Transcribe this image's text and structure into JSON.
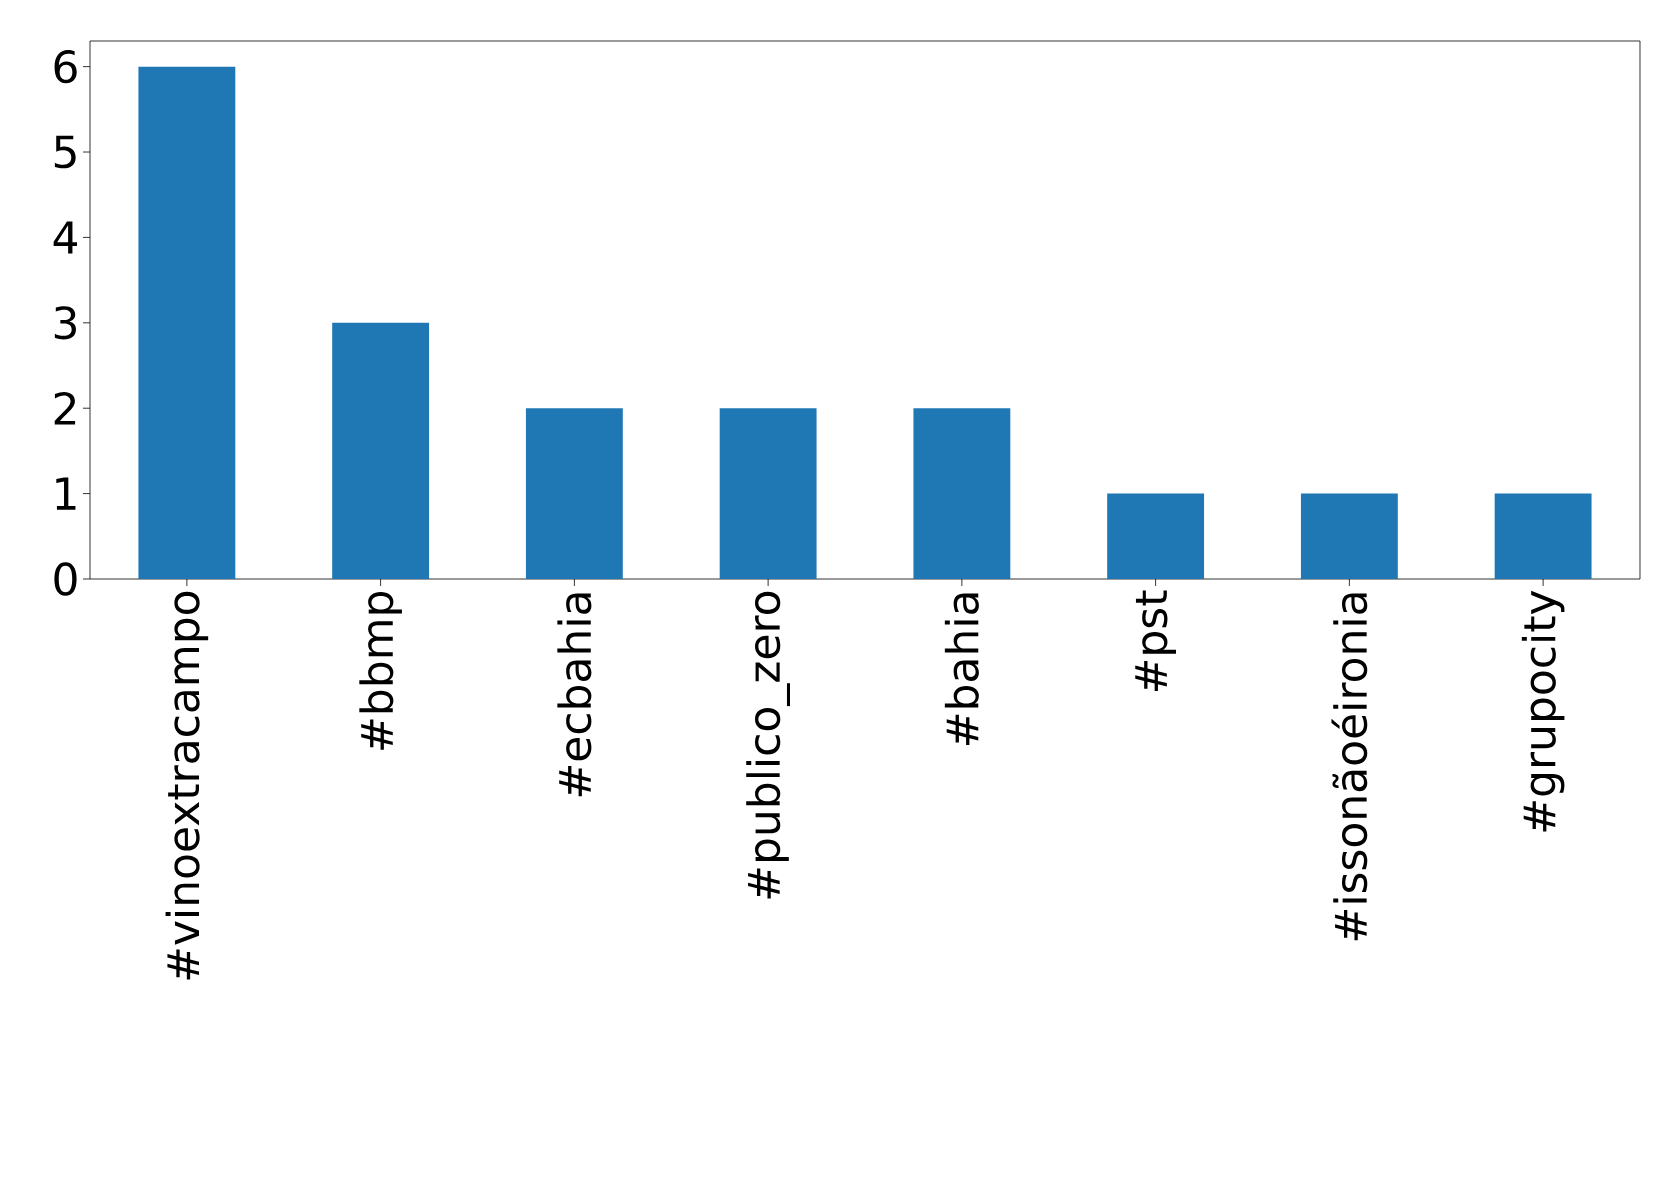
{
  "chart_data": {
    "type": "bar",
    "categories": [
      "#vinoextracampo",
      "#bbmp",
      "#ecbahia",
      "#publico_zero",
      "#bahia",
      "#pst",
      "#issonãoéironia",
      "#grupocity"
    ],
    "values": [
      6,
      3,
      2,
      2,
      2,
      1,
      1,
      1
    ],
    "color": "#1f77b4",
    "ylim": [
      0,
      6.3
    ],
    "yticks": [
      0,
      1,
      2,
      3,
      4,
      5,
      6
    ]
  }
}
